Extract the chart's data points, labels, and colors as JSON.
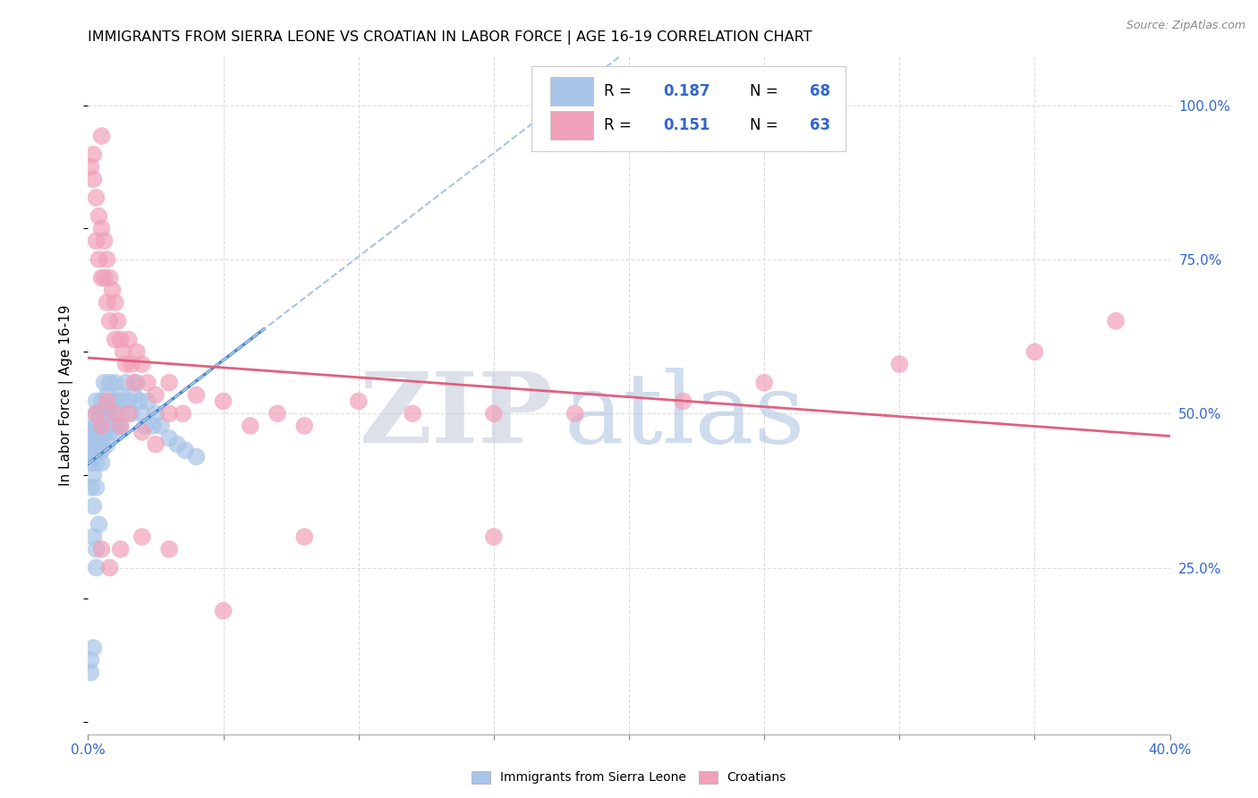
{
  "title": "IMMIGRANTS FROM SIERRA LEONE VS CROATIAN IN LABOR FORCE | AGE 16-19 CORRELATION CHART",
  "source": "Source: ZipAtlas.com",
  "ylabel": "In Labor Force | Age 16-19",
  "xlim": [
    0.0,
    0.4
  ],
  "ylim": [
    -0.02,
    1.08
  ],
  "sierra_leone_color": "#a8c4e8",
  "croatian_color": "#f0a0b8",
  "sierra_leone_R": 0.187,
  "sierra_leone_N": 68,
  "croatian_R": 0.151,
  "croatian_N": 63,
  "trend_blue_color": "#4488cc",
  "trend_pink_color": "#e06080",
  "trend_dashed_color": "#aac4e0",
  "watermark": "ZIPatlas",
  "watermark_color_ZIP": "#c8d4e8",
  "watermark_color_atlas": "#a8c8e8",
  "legend_color": "#3366cc",
  "bg_color": "#ffffff",
  "grid_color": "#dddddd",
  "tick_color": "#3366cc",
  "title_fontsize": 11.5,
  "source_fontsize": 9,
  "axis_fontsize": 11,
  "legend_fontsize": 12
}
